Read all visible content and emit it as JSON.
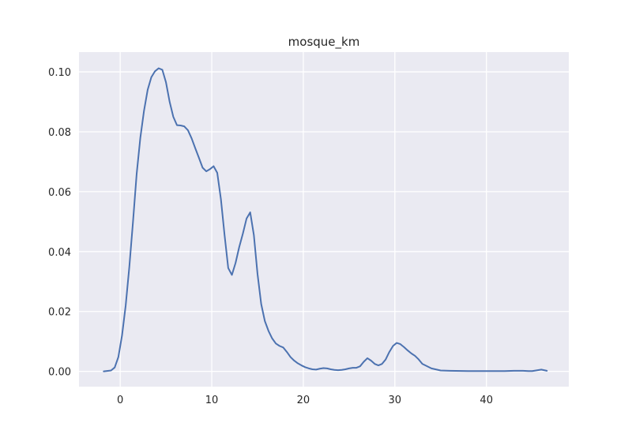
{
  "chart_data": {
    "type": "line",
    "title": "mosque_km",
    "xlabel": "",
    "ylabel": "",
    "xlim": [
      -4.5,
      49.0
    ],
    "ylim": [
      -0.0051,
      0.1066
    ],
    "x_ticks": [
      0,
      10,
      20,
      30,
      40
    ],
    "x_tick_labels": [
      "0",
      "10",
      "20",
      "30",
      "40"
    ],
    "y_ticks": [
      0.0,
      0.02,
      0.04,
      0.06,
      0.08,
      0.1
    ],
    "y_tick_labels": [
      "0.00",
      "0.02",
      "0.04",
      "0.06",
      "0.08",
      "0.10"
    ],
    "grid": true,
    "colors": {
      "line": "#4c72b0",
      "background": "#eaeaf2",
      "grid": "#ffffff"
    },
    "series": [
      {
        "x": [
          -1.8,
          -1.0,
          -0.6,
          -0.2,
          0.2,
          0.6,
          1.0,
          1.4,
          1.8,
          2.2,
          2.6,
          3.0,
          3.4,
          3.8,
          4.2,
          4.6,
          5.0,
          5.4,
          5.8,
          6.2,
          6.6,
          7.0,
          7.4,
          7.8,
          8.2,
          8.6,
          9.0,
          9.4,
          9.8,
          10.2,
          10.6,
          11.0,
          11.4,
          11.8,
          12.2,
          12.6,
          13.0,
          13.4,
          13.8,
          14.2,
          14.6,
          15.0,
          15.4,
          15.8,
          16.2,
          16.6,
          17.0,
          17.4,
          17.8,
          18.2,
          18.6,
          19.0,
          19.4,
          19.8,
          20.2,
          20.6,
          21.0,
          21.4,
          21.8,
          22.2,
          22.6,
          23.0,
          23.4,
          23.8,
          24.2,
          24.6,
          25.0,
          25.4,
          25.8,
          26.2,
          26.6,
          27.0,
          27.4,
          27.8,
          28.2,
          28.6,
          29.0,
          29.4,
          29.8,
          30.2,
          30.6,
          31.0,
          31.4,
          31.8,
          32.2,
          32.6,
          33.0,
          34.0,
          35.0,
          36.0,
          38.0,
          40.0,
          42.0,
          43.0,
          44.0,
          44.6,
          45.0,
          45.6,
          46.0,
          46.6
        ],
        "y": [
          0.0,
          0.0003,
          0.0013,
          0.0048,
          0.012,
          0.022,
          0.035,
          0.05,
          0.066,
          0.078,
          0.087,
          0.094,
          0.0982,
          0.1002,
          0.1012,
          0.1007,
          0.0965,
          0.09,
          0.085,
          0.0822,
          0.0821,
          0.0818,
          0.0805,
          0.0778,
          0.0745,
          0.0713,
          0.068,
          0.0668,
          0.0675,
          0.0685,
          0.0663,
          0.0575,
          0.0455,
          0.0345,
          0.0322,
          0.0362,
          0.0415,
          0.046,
          0.051,
          0.0531,
          0.0455,
          0.0325,
          0.0225,
          0.0168,
          0.0135,
          0.011,
          0.0093,
          0.0085,
          0.008,
          0.0065,
          0.0048,
          0.0036,
          0.0027,
          0.002,
          0.0014,
          0.001,
          0.0007,
          0.0006,
          0.0009,
          0.0011,
          0.001,
          0.0007,
          0.0005,
          0.0004,
          0.0005,
          0.0007,
          0.001,
          0.0012,
          0.0012,
          0.0017,
          0.0032,
          0.0044,
          0.0036,
          0.0025,
          0.002,
          0.0025,
          0.004,
          0.0065,
          0.0085,
          0.0095,
          0.0091,
          0.0081,
          0.007,
          0.006,
          0.0052,
          0.004,
          0.0025,
          0.001,
          0.0003,
          0.0002,
          0.0001,
          0.0001,
          0.0001,
          0.0002,
          0.0002,
          0.0001,
          0.0001,
          0.0004,
          0.0006,
          0.0002
        ]
      }
    ]
  }
}
